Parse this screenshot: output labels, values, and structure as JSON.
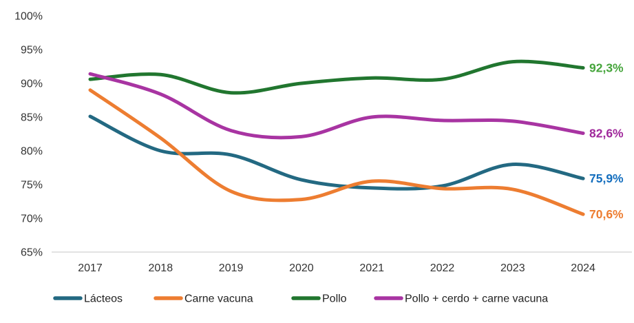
{
  "chart_data": {
    "type": "line",
    "title": "",
    "xlabel": "",
    "ylabel": "",
    "x": [
      2017,
      2018,
      2019,
      2020,
      2021,
      2022,
      2023,
      2024
    ],
    "x_tick_labels": [
      "2017",
      "2018",
      "2019",
      "2020",
      "2021",
      "2022",
      "2023",
      "2024"
    ],
    "y_tick_labels": [
      "100%",
      "95%",
      "90%",
      "85%",
      "80%",
      "75%",
      "70%",
      "65%"
    ],
    "y_tick_values": [
      100,
      95,
      90,
      85,
      80,
      75,
      70,
      65
    ],
    "ylim": [
      65,
      100
    ],
    "grid": false,
    "baseline_color": "#d9d9d9",
    "axis_text_color": "#333333",
    "legend_position": "bottom",
    "series": [
      {
        "name": "Lácteos",
        "color": "#236982",
        "end_label": "75,9%",
        "end_label_color": "#146ebe",
        "values": [
          85.1,
          80.0,
          79.4,
          75.7,
          74.5,
          74.8,
          78.0,
          75.9
        ]
      },
      {
        "name": "Carne vacuna",
        "color": "#ed7d31",
        "end_label": "70,6%",
        "end_label_color": "#ed7d31",
        "values": [
          89.0,
          81.9,
          74.0,
          72.8,
          75.5,
          74.4,
          74.3,
          70.6
        ]
      },
      {
        "name": "Pollo",
        "color": "#21762f",
        "end_label": "92,3%",
        "end_label_color": "#46a53c",
        "values": [
          90.6,
          91.3,
          88.6,
          90.0,
          90.8,
          90.6,
          93.2,
          92.3
        ]
      },
      {
        "name": "Pollo + cerdo + carne vacuna",
        "color": "#a834a2",
        "end_label": "82,6%",
        "end_label_color": "#a0289b",
        "values": [
          91.4,
          88.4,
          83.0,
          82.1,
          85.0,
          84.5,
          84.4,
          82.6
        ]
      }
    ]
  }
}
